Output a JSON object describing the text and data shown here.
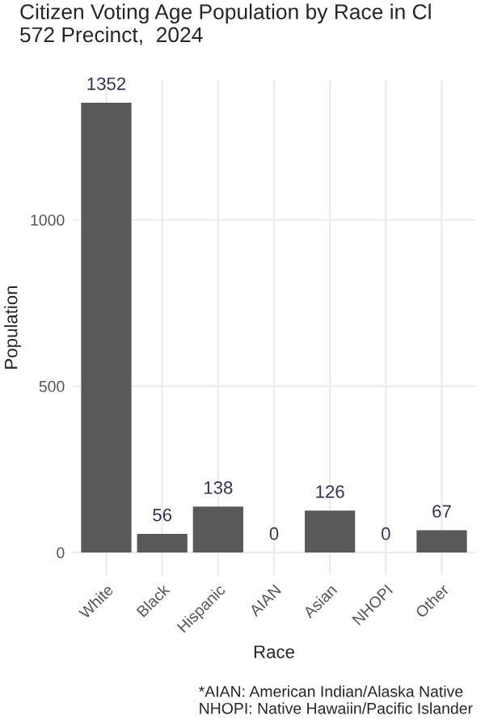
{
  "chart_data": {
    "type": "bar",
    "title": "Citizen Voting Age Population by Race in Cl\n572 Precinct,  2024",
    "xlabel": "Race",
    "ylabel": "Population",
    "categories": [
      "White",
      "Black",
      "Hispanic",
      "AIAN",
      "Asian",
      "NHOPI",
      "Other"
    ],
    "values": [
      1352,
      56,
      138,
      0,
      126,
      0,
      67
    ],
    "color": "#595959",
    "data_labels": true,
    "ylim": [
      -68,
      1420
    ],
    "yticks": [
      0,
      500,
      1000
    ],
    "grid": true,
    "annotations": [
      "*AIAN: American Indian/Alaska Native\nNHOPI: Native Hawaiin/Pacific Islander"
    ]
  }
}
